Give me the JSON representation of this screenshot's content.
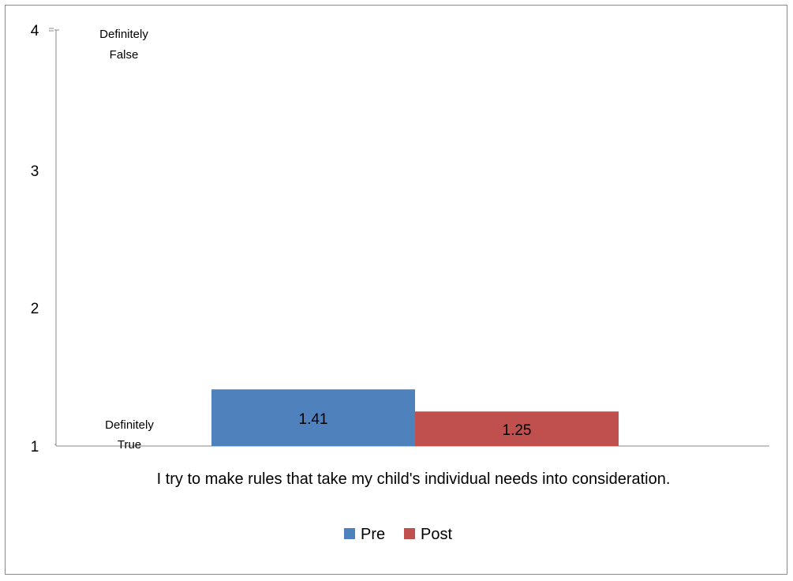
{
  "chart_data": {
    "type": "bar",
    "categories": [
      "I try to make rules that take my child's individual needs into consideration."
    ],
    "series": [
      {
        "name": "Pre",
        "values": [
          1.41
        ],
        "color": "#4f81bd"
      },
      {
        "name": "Post",
        "values": [
          1.25
        ],
        "color": "#c0504d"
      }
    ],
    "data_labels": [
      "1.41",
      "1.25"
    ],
    "y_ticks": [
      "1",
      "2",
      "3",
      "4"
    ],
    "ylim": [
      1,
      4
    ],
    "annotations": {
      "top": [
        "Definitely",
        "False"
      ],
      "bottom": [
        "Definitely",
        "True"
      ]
    },
    "legend_position": "bottom",
    "grid": false
  }
}
